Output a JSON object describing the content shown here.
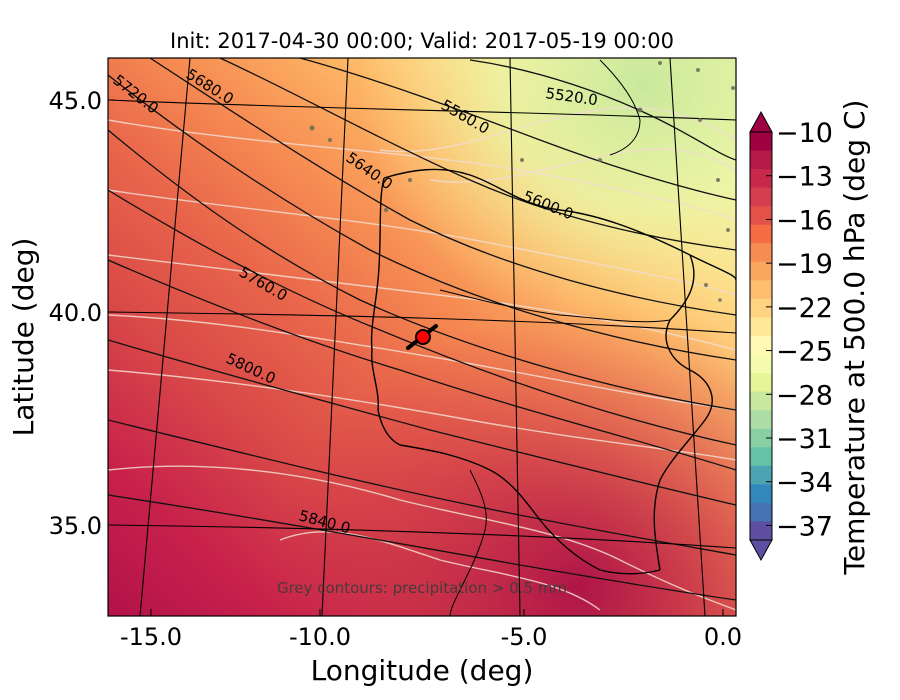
{
  "title": "Init: 2017-04-30 00:00; Valid: 2017-05-19 00:00",
  "xlabel": "Longitude (deg)",
  "ylabel": "Latitude (deg)",
  "x_ticks": [
    "-15.0",
    "-10.0",
    "-5.0",
    "0.0"
  ],
  "y_ticks": [
    "45.0",
    "40.0",
    "35.0"
  ],
  "colorbar": {
    "label": "Temperature at 500.0 hPa (deg C)",
    "ticks": [
      "−10",
      "−13",
      "−16",
      "−19",
      "−22",
      "−25",
      "−28",
      "−31",
      "−34",
      "−37"
    ],
    "min": -38,
    "max": -10
  },
  "note": "Grey contours: precipitation > 0.5 mm",
  "geopotential_contours": [
    {
      "label": "5520.0"
    },
    {
      "label": "5560.0"
    },
    {
      "label": "5600.0"
    },
    {
      "label": "5640.0"
    },
    {
      "label": "5680.0"
    },
    {
      "label": "5720.0"
    },
    {
      "label": "5760.0"
    },
    {
      "label": "5800.0"
    },
    {
      "label": "5840.0"
    }
  ],
  "marker": {
    "lon": -7.8,
    "lat": 39.3,
    "color": "#ff0000"
  },
  "colors": {
    "warm": "#c8224b",
    "cold": "#d6ee9b",
    "marker": "#ff0000"
  }
}
